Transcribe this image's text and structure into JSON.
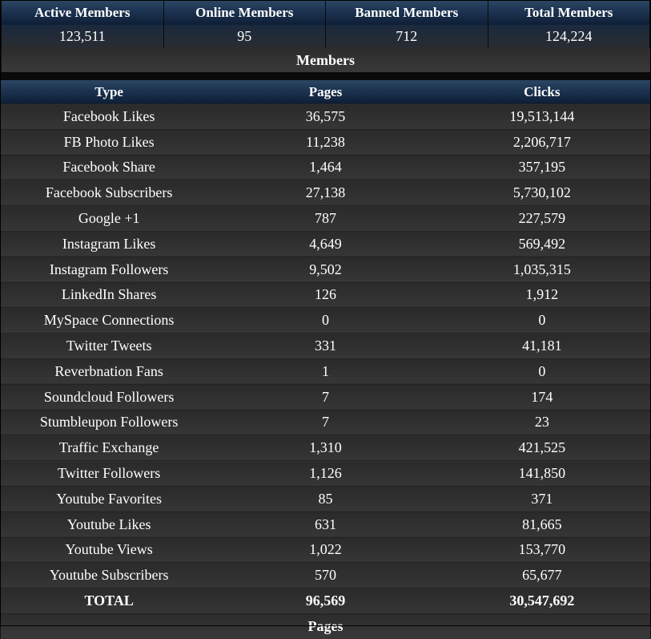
{
  "members": {
    "headers": [
      "Active Members",
      "Online Members",
      "Banned Members",
      "Total Members"
    ],
    "values": [
      "123,511",
      "95",
      "712",
      "124,224"
    ],
    "caption": "Members"
  },
  "pages": {
    "headers": [
      "Type",
      "Pages",
      "Clicks"
    ],
    "rows": [
      [
        "Facebook Likes",
        "36,575",
        "19,513,144"
      ],
      [
        "FB Photo Likes",
        "11,238",
        "2,206,717"
      ],
      [
        "Facebook Share",
        "1,464",
        "357,195"
      ],
      [
        "Facebook Subscribers",
        "27,138",
        "5,730,102"
      ],
      [
        "Google +1",
        "787",
        "227,579"
      ],
      [
        "Instagram Likes",
        "4,649",
        "569,492"
      ],
      [
        "Instagram Followers",
        "9,502",
        "1,035,315"
      ],
      [
        "LinkedIn Shares",
        "126",
        "1,912"
      ],
      [
        "MySpace Connections",
        "0",
        "0"
      ],
      [
        "Twitter Tweets",
        "331",
        "41,181"
      ],
      [
        "Reverbnation Fans",
        "1",
        "0"
      ],
      [
        "Soundcloud Followers",
        "7",
        "174"
      ],
      [
        "Stumbleupon Followers",
        "7",
        "23"
      ],
      [
        "Traffic Exchange",
        "1,310",
        "421,525"
      ],
      [
        "Twitter Followers",
        "1,126",
        "141,850"
      ],
      [
        "Youtube Favorites",
        "85",
        "371"
      ],
      [
        "Youtube Likes",
        "631",
        "81,665"
      ],
      [
        "Youtube Views",
        "1,022",
        "153,770"
      ],
      [
        "Youtube Subscribers",
        "570",
        "65,677"
      ]
    ],
    "total": [
      "TOTAL",
      "96,569",
      "30,547,692"
    ],
    "caption": "Pages"
  }
}
